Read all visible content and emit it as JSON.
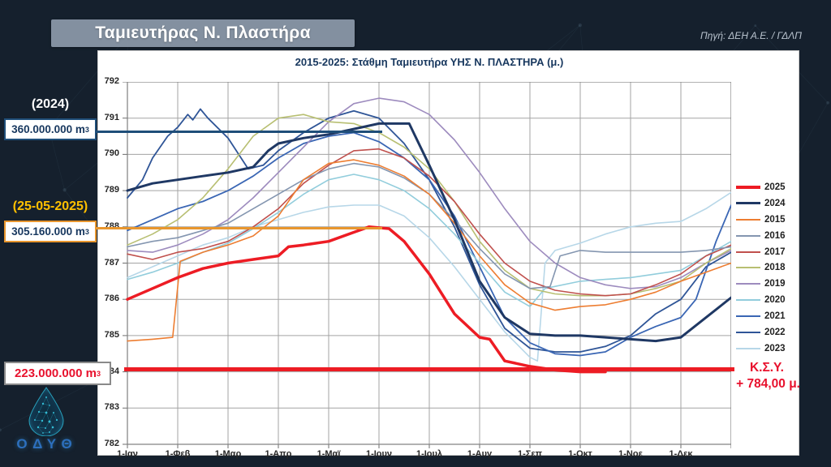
{
  "header": {
    "title": "Ταμιευτήρας Ν. Πλαστήρα",
    "source": "Πηγή: ΔΕΗ Α.Ε. / ΓΔΛΠ"
  },
  "annotations": {
    "y2024": {
      "label": "(2024)",
      "volume": "360.000.000 m",
      "sup": "3"
    },
    "y2025": {
      "label": "(25-05-2025)",
      "volume": "305.160.000 m",
      "sup": "3"
    },
    "dead": {
      "volume": "223.000.000 m",
      "sup": "3"
    },
    "ksy": {
      "line1": "Κ.Σ.Υ.",
      "line2": "+ 784,00 μ."
    }
  },
  "logo": {
    "text": "ΟΔΥΘ"
  },
  "chart_data": {
    "type": "line",
    "title": "2015-2025: Στάθμη Ταμιευτήρα ΥΗΣ Ν. ΠΛΑΣΤΗΡΑ (μ.)",
    "x_axis": {
      "labels": [
        "1-Ιαν",
        "1-Φεβ",
        "1-Μαρ",
        "1-Απρ",
        "1-Μαϊ",
        "1-Ιουν",
        "1-Ιουλ",
        "1-Αυγ",
        "1-Σεπ",
        "1-Οκτ",
        "1-Νοε",
        "1-Δεκ"
      ],
      "unit_months": 12
    },
    "y_axis": {
      "min": 782,
      "max": 792,
      "step": 1,
      "unit": "μ."
    },
    "grid": true,
    "legend_position": "right",
    "reference_lines": [
      {
        "name": "volume-2024-level",
        "value": 790.6,
        "color": "#1f4e79",
        "thickness": 3
      },
      {
        "name": "volume-2025-level",
        "value": 787.95,
        "color": "#e8962e",
        "thickness": 3
      },
      {
        "name": "ksy-784",
        "value": 784.05,
        "color": "#ed1c24",
        "thickness": 5
      }
    ],
    "series": [
      {
        "name": "2025",
        "color": "#ed1c24",
        "width": 3.5,
        "points": [
          [
            0,
            786.0
          ],
          [
            0.5,
            786.3
          ],
          [
            1,
            786.6
          ],
          [
            1.5,
            786.85
          ],
          [
            2,
            787.0
          ],
          [
            2.5,
            787.1
          ],
          [
            3,
            787.2
          ],
          [
            3.2,
            787.45
          ],
          [
            3.5,
            787.5
          ],
          [
            4,
            787.6
          ],
          [
            4.5,
            787.85
          ],
          [
            4.8,
            788.0
          ],
          [
            5.2,
            787.95
          ],
          [
            5.5,
            787.6
          ],
          [
            6,
            786.7
          ],
          [
            6.5,
            785.6
          ],
          [
            7,
            784.95
          ],
          [
            7.2,
            784.9
          ],
          [
            7.5,
            784.3
          ],
          [
            8,
            784.15
          ],
          [
            8.5,
            784.05
          ],
          [
            9,
            784.0
          ],
          [
            9.5,
            784.0
          ]
        ]
      },
      {
        "name": "2024",
        "color": "#1f3864",
        "width": 3,
        "points": [
          [
            0,
            789.0
          ],
          [
            0.5,
            789.2
          ],
          [
            1,
            789.3
          ],
          [
            1.5,
            789.4
          ],
          [
            2,
            789.5
          ],
          [
            2.5,
            789.65
          ],
          [
            2.8,
            790.1
          ],
          [
            3,
            790.3
          ],
          [
            3.5,
            790.45
          ],
          [
            4,
            790.55
          ],
          [
            4.5,
            790.7
          ],
          [
            5,
            790.85
          ],
          [
            5.6,
            790.85
          ],
          [
            6,
            789.7
          ],
          [
            6.5,
            788.2
          ],
          [
            7,
            786.5
          ],
          [
            7.5,
            785.5
          ],
          [
            8,
            785.05
          ],
          [
            8.5,
            785.0
          ],
          [
            9,
            785.0
          ],
          [
            9.5,
            784.95
          ],
          [
            10,
            784.9
          ],
          [
            10.5,
            784.85
          ],
          [
            11,
            784.95
          ],
          [
            11.5,
            785.5
          ],
          [
            12,
            786.05
          ]
        ]
      },
      {
        "name": "2015",
        "color": "#ed7d31",
        "width": 1.6,
        "points": [
          [
            0,
            784.85
          ],
          [
            0.5,
            784.9
          ],
          [
            0.9,
            784.95
          ],
          [
            1.05,
            787.05
          ],
          [
            1.5,
            787.3
          ],
          [
            2,
            787.5
          ],
          [
            2.5,
            787.75
          ],
          [
            3,
            788.3
          ],
          [
            3.5,
            789.3
          ],
          [
            4,
            789.75
          ],
          [
            4.5,
            789.85
          ],
          [
            5,
            789.7
          ],
          [
            5.5,
            789.4
          ],
          [
            6,
            788.9
          ],
          [
            6.5,
            788.1
          ],
          [
            7,
            787.2
          ],
          [
            7.5,
            786.4
          ],
          [
            8,
            785.9
          ],
          [
            8.5,
            785.7
          ],
          [
            9,
            785.8
          ],
          [
            9.5,
            785.85
          ],
          [
            10,
            786.0
          ],
          [
            10.5,
            786.2
          ],
          [
            11,
            786.5
          ],
          [
            11.5,
            786.75
          ],
          [
            12,
            787.0
          ]
        ]
      },
      {
        "name": "2016",
        "color": "#8496b0",
        "width": 1.6,
        "points": [
          [
            0,
            787.45
          ],
          [
            0.5,
            787.6
          ],
          [
            1,
            787.7
          ],
          [
            1.5,
            787.9
          ],
          [
            2,
            788.1
          ],
          [
            2.5,
            788.5
          ],
          [
            3,
            788.9
          ],
          [
            3.5,
            789.3
          ],
          [
            4,
            789.6
          ],
          [
            4.5,
            789.75
          ],
          [
            5,
            789.65
          ],
          [
            5.5,
            789.35
          ],
          [
            6,
            788.9
          ],
          [
            6.5,
            788.2
          ],
          [
            7,
            787.4
          ],
          [
            7.5,
            786.7
          ],
          [
            8,
            786.3
          ],
          [
            8.4,
            786.35
          ],
          [
            8.6,
            787.2
          ],
          [
            9,
            787.35
          ],
          [
            9.5,
            787.3
          ],
          [
            10,
            787.3
          ],
          [
            10.5,
            787.3
          ],
          [
            11,
            787.3
          ],
          [
            11.5,
            787.35
          ],
          [
            12,
            787.45
          ]
        ]
      },
      {
        "name": "2017",
        "color": "#c0504d",
        "width": 1.6,
        "points": [
          [
            0,
            787.25
          ],
          [
            0.5,
            787.1
          ],
          [
            1,
            787.3
          ],
          [
            1.5,
            787.4
          ],
          [
            2,
            787.6
          ],
          [
            2.5,
            788.0
          ],
          [
            3,
            788.5
          ],
          [
            3.5,
            789.2
          ],
          [
            4,
            789.7
          ],
          [
            4.5,
            790.1
          ],
          [
            5,
            790.15
          ],
          [
            5.5,
            789.9
          ],
          [
            6,
            789.4
          ],
          [
            6.5,
            788.7
          ],
          [
            7,
            787.8
          ],
          [
            7.5,
            787.0
          ],
          [
            8,
            786.5
          ],
          [
            8.5,
            786.25
          ],
          [
            9,
            786.15
          ],
          [
            9.5,
            786.1
          ],
          [
            10,
            786.15
          ],
          [
            10.5,
            786.4
          ],
          [
            11,
            786.7
          ],
          [
            11.5,
            787.2
          ],
          [
            12,
            787.5
          ]
        ]
      },
      {
        "name": "2018",
        "color": "#b8bf72",
        "width": 1.6,
        "points": [
          [
            0,
            787.5
          ],
          [
            0.5,
            787.8
          ],
          [
            1,
            788.2
          ],
          [
            1.5,
            788.8
          ],
          [
            2,
            789.6
          ],
          [
            2.5,
            790.5
          ],
          [
            3,
            791.0
          ],
          [
            3.5,
            791.1
          ],
          [
            4,
            790.9
          ],
          [
            4.5,
            790.85
          ],
          [
            5,
            790.6
          ],
          [
            5.5,
            790.2
          ],
          [
            6,
            789.6
          ],
          [
            6.5,
            788.7
          ],
          [
            7,
            787.6
          ],
          [
            7.5,
            786.8
          ],
          [
            8,
            786.3
          ],
          [
            8.5,
            786.15
          ],
          [
            9,
            786.1
          ],
          [
            9.5,
            786.1
          ],
          [
            10,
            786.15
          ],
          [
            10.5,
            786.3
          ],
          [
            11,
            786.5
          ],
          [
            11.5,
            787.0
          ],
          [
            12,
            787.4
          ]
        ]
      },
      {
        "name": "2019",
        "color": "#9d8bbe",
        "width": 1.6,
        "points": [
          [
            0,
            787.35
          ],
          [
            0.5,
            787.3
          ],
          [
            1,
            787.5
          ],
          [
            1.5,
            787.8
          ],
          [
            2,
            788.2
          ],
          [
            2.5,
            788.8
          ],
          [
            3,
            789.5
          ],
          [
            3.5,
            790.2
          ],
          [
            4,
            790.9
          ],
          [
            4.5,
            791.4
          ],
          [
            5,
            791.55
          ],
          [
            5.5,
            791.45
          ],
          [
            6,
            791.1
          ],
          [
            6.5,
            790.4
          ],
          [
            7,
            789.5
          ],
          [
            7.5,
            788.5
          ],
          [
            8,
            787.6
          ],
          [
            8.5,
            787.0
          ],
          [
            9,
            786.6
          ],
          [
            9.5,
            786.4
          ],
          [
            10,
            786.3
          ],
          [
            10.5,
            786.35
          ],
          [
            11,
            786.6
          ],
          [
            11.5,
            787.0
          ],
          [
            12,
            787.35
          ]
        ]
      },
      {
        "name": "2020",
        "color": "#92cddc",
        "width": 1.6,
        "points": [
          [
            0,
            786.55
          ],
          [
            0.5,
            786.75
          ],
          [
            1,
            787.0
          ],
          [
            1.5,
            787.3
          ],
          [
            2,
            787.55
          ],
          [
            2.5,
            787.95
          ],
          [
            3,
            788.4
          ],
          [
            3.5,
            788.9
          ],
          [
            4,
            789.3
          ],
          [
            4.5,
            789.45
          ],
          [
            5,
            789.3
          ],
          [
            5.5,
            789.0
          ],
          [
            6,
            788.5
          ],
          [
            6.5,
            787.8
          ],
          [
            7,
            787.0
          ],
          [
            7.5,
            786.2
          ],
          [
            8,
            785.8
          ],
          [
            8.3,
            786.3
          ],
          [
            9,
            786.5
          ],
          [
            9.5,
            786.55
          ],
          [
            10,
            786.6
          ],
          [
            10.5,
            786.7
          ],
          [
            11,
            786.8
          ],
          [
            11.5,
            787.2
          ],
          [
            12,
            787.6
          ]
        ]
      },
      {
        "name": "2021",
        "color": "#3a66b4",
        "width": 1.8,
        "points": [
          [
            0,
            787.9
          ],
          [
            0.5,
            788.2
          ],
          [
            1,
            788.5
          ],
          [
            1.5,
            788.7
          ],
          [
            2,
            789.0
          ],
          [
            2.5,
            789.4
          ],
          [
            3,
            789.9
          ],
          [
            3.5,
            790.3
          ],
          [
            4,
            790.5
          ],
          [
            4.5,
            790.6
          ],
          [
            5,
            790.35
          ],
          [
            5.5,
            789.9
          ],
          [
            6,
            789.3
          ],
          [
            6.5,
            788.3
          ],
          [
            7,
            786.9
          ],
          [
            7.5,
            785.5
          ],
          [
            8,
            784.8
          ],
          [
            8.5,
            784.5
          ],
          [
            9,
            784.45
          ],
          [
            9.5,
            784.55
          ],
          [
            10,
            784.95
          ],
          [
            10.5,
            785.25
          ],
          [
            11,
            785.5
          ],
          [
            11.3,
            786.0
          ],
          [
            11.7,
            787.6
          ],
          [
            12,
            788.6
          ]
        ]
      },
      {
        "name": "2022",
        "color": "#2f5597",
        "width": 1.8,
        "points": [
          [
            0,
            788.8
          ],
          [
            0.3,
            789.3
          ],
          [
            0.5,
            789.9
          ],
          [
            0.8,
            790.5
          ],
          [
            1,
            790.75
          ],
          [
            1.2,
            791.1
          ],
          [
            1.3,
            790.95
          ],
          [
            1.45,
            791.25
          ],
          [
            1.6,
            791.0
          ],
          [
            2,
            790.45
          ],
          [
            2.4,
            789.6
          ],
          [
            2.7,
            789.7
          ],
          [
            3,
            790.1
          ],
          [
            3.5,
            790.6
          ],
          [
            4,
            791.0
          ],
          [
            4.5,
            791.2
          ],
          [
            5,
            791.0
          ],
          [
            5.5,
            790.3
          ],
          [
            6,
            789.3
          ],
          [
            6.5,
            788.0
          ],
          [
            7,
            786.4
          ],
          [
            7.5,
            785.2
          ],
          [
            8,
            784.65
          ],
          [
            8.5,
            784.55
          ],
          [
            9,
            784.55
          ],
          [
            9.5,
            784.7
          ],
          [
            10,
            785.0
          ],
          [
            10.5,
            785.6
          ],
          [
            11,
            786.0
          ],
          [
            11.5,
            786.9
          ],
          [
            12,
            787.3
          ]
        ]
      },
      {
        "name": "2023",
        "color": "#b7d7e8",
        "width": 1.6,
        "points": [
          [
            0,
            786.6
          ],
          [
            0.5,
            786.9
          ],
          [
            1,
            787.2
          ],
          [
            1.5,
            787.5
          ],
          [
            2,
            787.7
          ],
          [
            2.5,
            788.0
          ],
          [
            3,
            788.2
          ],
          [
            3.5,
            788.4
          ],
          [
            4,
            788.55
          ],
          [
            4.5,
            788.6
          ],
          [
            5,
            788.6
          ],
          [
            5.5,
            788.3
          ],
          [
            6,
            787.7
          ],
          [
            6.5,
            786.9
          ],
          [
            7,
            786.0
          ],
          [
            7.5,
            785.1
          ],
          [
            8,
            784.4
          ],
          [
            8.15,
            784.3
          ],
          [
            8.3,
            787.0
          ],
          [
            8.5,
            787.35
          ],
          [
            9,
            787.55
          ],
          [
            9.5,
            787.8
          ],
          [
            10,
            788.0
          ],
          [
            10.5,
            788.1
          ],
          [
            11,
            788.15
          ],
          [
            11.5,
            788.5
          ],
          [
            12,
            788.95
          ]
        ]
      }
    ]
  }
}
